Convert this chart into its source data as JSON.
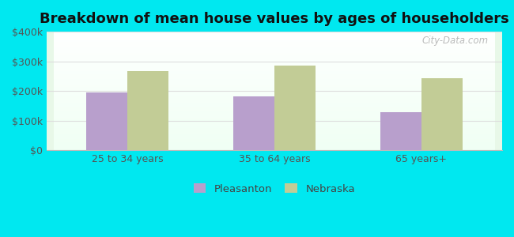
{
  "title": "Breakdown of mean house values by ages of householders",
  "categories": [
    "25 to 34 years",
    "35 to 64 years",
    "65 years+"
  ],
  "pleasanton_values": [
    195000,
    182000,
    128000
  ],
  "nebraska_values": [
    268000,
    285000,
    243000
  ],
  "pleasanton_color": "#b89fcc",
  "nebraska_color": "#c2cc96",
  "ylim": [
    0,
    400000
  ],
  "yticks": [
    0,
    100000,
    200000,
    300000,
    400000
  ],
  "ytick_labels": [
    "$0",
    "$100k",
    "$200k",
    "$300k",
    "$400k"
  ],
  "outer_bg": "#00e8f0",
  "watermark": "City-Data.com",
  "bar_width": 0.28,
  "legend_labels": [
    "Pleasanton",
    "Nebraska"
  ],
  "grid_color": "#dddddd",
  "tick_color": "#555555",
  "title_fontsize": 13,
  "tick_fontsize": 9
}
